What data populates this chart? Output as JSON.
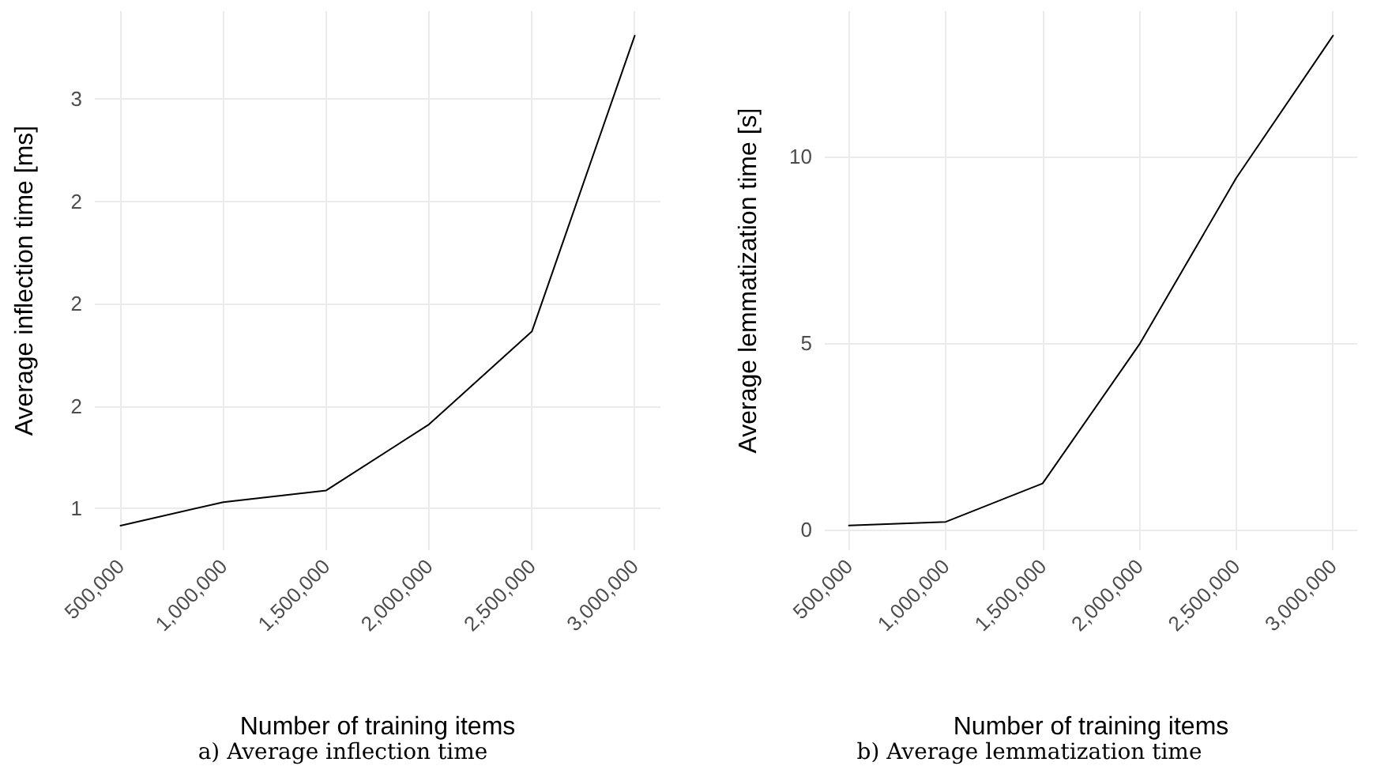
{
  "chart_data": [
    {
      "type": "line",
      "title": "a) Average inflection time",
      "xlabel": "Number of training items",
      "ylabel": "Average inflection time [ms]",
      "x": [
        500000,
        1000000,
        1500000,
        2000000,
        2500000,
        3000000
      ],
      "series": [
        {
          "color": "#000000",
          "values": [
            0.915,
            1.03,
            1.087,
            1.41,
            1.864,
            3.31
          ]
        }
      ],
      "xlim": [
        375000,
        3125000
      ],
      "xticks": [
        {
          "value": 500000,
          "label": "500,000"
        },
        {
          "value": 1000000,
          "label": "1,000,000"
        },
        {
          "value": 1500000,
          "label": "1,500,000"
        },
        {
          "value": 2000000,
          "label": "2,000,000"
        },
        {
          "value": 2500000,
          "label": "2,500,000"
        },
        {
          "value": 3000000,
          "label": "3,000,000"
        }
      ],
      "ylim": [
        0.795,
        3.43
      ],
      "yticks": [
        1,
        {
          "value": 1.5,
          "label": "2"
        },
        2,
        {
          "value": 2.5,
          "label": "2"
        },
        3
      ],
      "grid": true,
      "marker": "none",
      "line_style": "solid"
    },
    {
      "type": "line",
      "title": "b) Average lemmatization time",
      "xlabel": "Number of training items",
      "ylabel": "Average lemmatization time [s]",
      "x": [
        500000,
        1000000,
        1500000,
        2000000,
        2500000,
        3000000
      ],
      "series": [
        {
          "color": "#000000",
          "values": [
            0.1,
            0.2,
            1.23,
            4.96,
            9.42,
            13.24
          ]
        }
      ],
      "xlim": [
        375000,
        3125000
      ],
      "xticks": [
        {
          "value": 500000,
          "label": "500,000"
        },
        {
          "value": 1000000,
          "label": "1,000,000"
        },
        {
          "value": 1500000,
          "label": "1,500,000"
        },
        {
          "value": 2000000,
          "label": "2,000,000"
        },
        {
          "value": 2500000,
          "label": "2,500,000"
        },
        {
          "value": 3000000,
          "label": "3,000,000"
        }
      ],
      "ylim": [
        -0.56,
        13.9
      ],
      "yticks": [
        0,
        5,
        10
      ],
      "grid": true,
      "marker": "none",
      "line_style": "solid"
    }
  ]
}
